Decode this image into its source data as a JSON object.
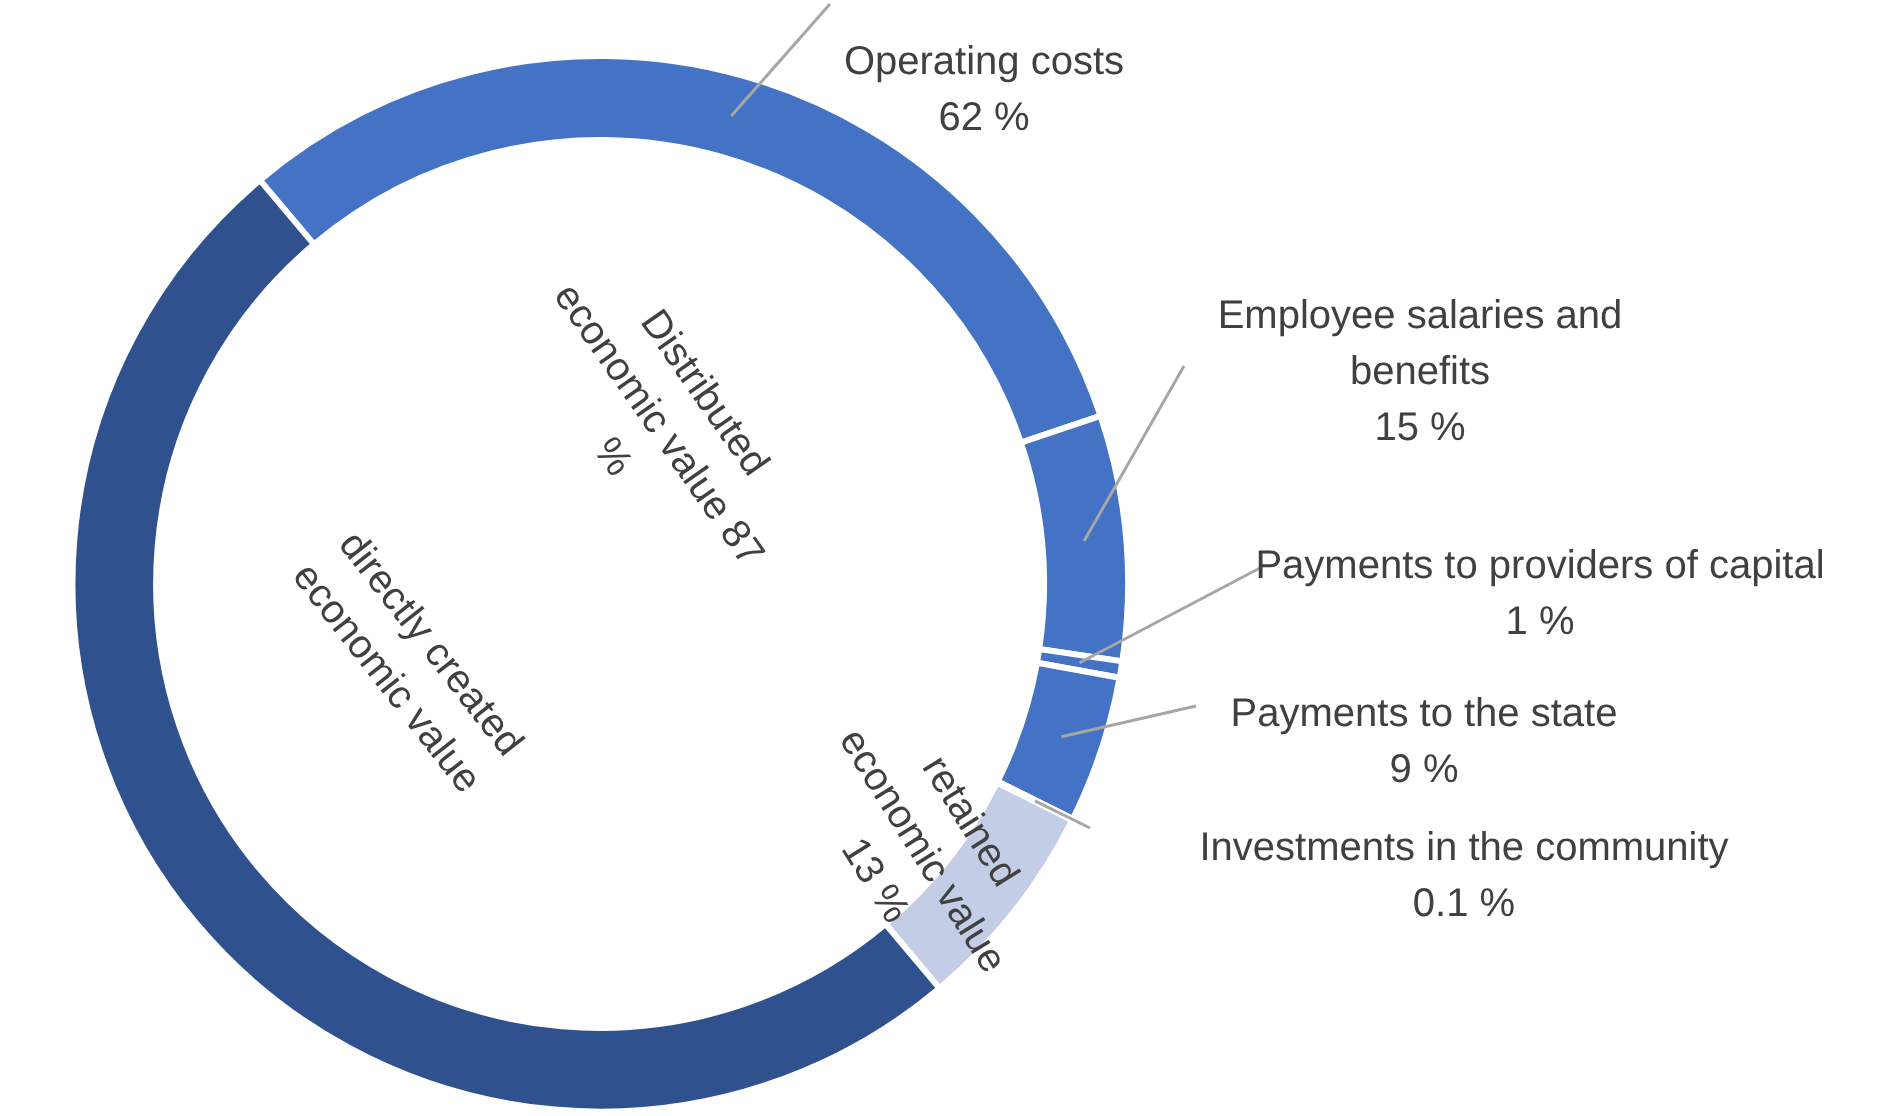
{
  "chart_data": {
    "type": "donut",
    "categories": [
      "Operating costs",
      "Employee salaries and benefits",
      "Payments to providers of capital",
      "Payments to the state",
      "Investments in the community",
      "retained economic value",
      "directly created economic value"
    ],
    "values": [
      62,
      15,
      1,
      9,
      0.1,
      13,
      100
    ],
    "value_labels": [
      "62 %",
      "15 %",
      "1 %",
      "9 %",
      "0.1 %",
      "13 %",
      null
    ],
    "colors": [
      "#4472c4",
      "#4472c4",
      "#4472c4",
      "#4472c4",
      "#4472c4",
      "#c3cde6",
      "#2f528f"
    ],
    "annotations": [
      "Distributed economic value 87 %"
    ],
    "legend": false
  }
}
